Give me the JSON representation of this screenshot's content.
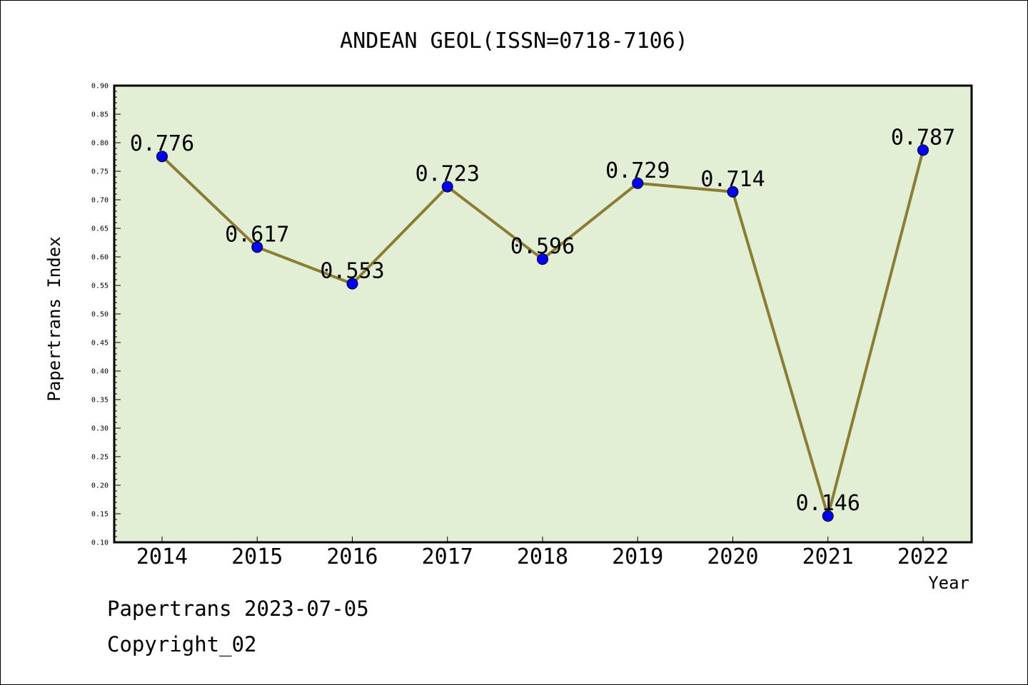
{
  "chart_data": {
    "type": "line",
    "title": "ANDEAN GEOL(ISSN=0718-7106)",
    "xlabel": "Year",
    "ylabel": "Papertrans Index",
    "categories": [
      "2014",
      "2015",
      "2016",
      "2017",
      "2018",
      "2019",
      "2020",
      "2021",
      "2022"
    ],
    "values": [
      0.776,
      0.617,
      0.553,
      0.723,
      0.596,
      0.729,
      0.714,
      0.146,
      0.787
    ],
    "data_labels": [
      "0.776",
      "0.617",
      "0.553",
      "0.723",
      "0.596",
      "0.729",
      "0.714",
      "0.146",
      "0.787"
    ],
    "ylim": [
      0.1,
      0.9
    ],
    "yticks": [
      "0.10",
      "0.15",
      "0.20",
      "0.25",
      "0.30",
      "0.35",
      "0.40",
      "0.45",
      "0.50",
      "0.55",
      "0.60",
      "0.65",
      "0.70",
      "0.75",
      "0.80",
      "0.85",
      "0.90"
    ],
    "grid": false,
    "legend": "none",
    "colors": {
      "plot_background": "#e2efd5",
      "line": "#8b7d35",
      "marker": "#0000ff"
    }
  },
  "footer": {
    "line1": "Papertrans 2023-07-05",
    "line2": "Copyright_02"
  }
}
